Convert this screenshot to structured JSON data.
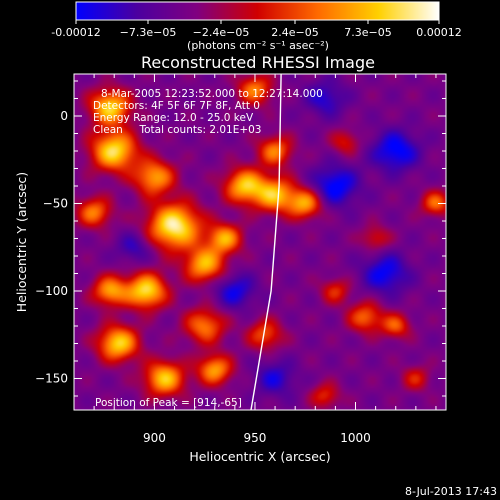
{
  "chart_data": {
    "type": "heatmap",
    "title": "Reconstructed RHESSI Image",
    "colorbar": {
      "tick_labels": [
        "-0.00012",
        "−7.3e−05",
        "−2.4e−05",
        "2.4e−05",
        "7.3e−05",
        "0.00012"
      ],
      "range": [
        -0.00012,
        0.00012
      ],
      "unit_label": "(photons cm⁻² s⁻¹ asec⁻²)",
      "colors": [
        "#0000ff",
        "#4b00a0",
        "#800080",
        "#d00000",
        "#ff6a00",
        "#ffd000",
        "#ffffff"
      ]
    },
    "xlabel": "Heliocentric X (arcsec)",
    "ylabel": "Heliocentric Y (arcsec)",
    "xlim": [
      860,
      1045
    ],
    "ylim": [
      -168,
      24
    ],
    "xticks": [
      {
        "value": 900,
        "label": "900"
      },
      {
        "value": 950,
        "label": "950"
      },
      {
        "value": 1000,
        "label": "1000"
      }
    ],
    "yticks": [
      {
        "value": 0,
        "label": "0"
      },
      {
        "value": -50,
        "label": "−50"
      },
      {
        "value": -100,
        "label": "−100"
      },
      {
        "value": -150,
        "label": "−150"
      }
    ],
    "annotations": {
      "time_range": "8-Mar-2005 12:23:52.000 to 12:27:14.000",
      "detectors": "Detectors: 4F 5F 6F 7F 8F, Att 0",
      "energy": "Energy Range: 12.0 - 25.0 keV",
      "clean": "Clean     Total counts: 2.01E+03",
      "peak": "Position of Peak = [914,-65]"
    },
    "blobs": [
      {
        "x": 910,
        "y": -63,
        "amp": 1.0,
        "s": 9
      },
      {
        "x": 896,
        "y": -100,
        "amp": 0.9,
        "s": 7
      },
      {
        "x": 878,
        "y": -100,
        "amp": 0.7,
        "s": 6
      },
      {
        "x": 882,
        "y": -130,
        "amp": 0.85,
        "s": 7
      },
      {
        "x": 905,
        "y": -150,
        "amp": 0.8,
        "s": 7
      },
      {
        "x": 930,
        "y": -145,
        "amp": 0.7,
        "s": 6
      },
      {
        "x": 880,
        "y": -20,
        "amp": 0.9,
        "s": 8
      },
      {
        "x": 878,
        "y": 5,
        "amp": 0.85,
        "s": 7
      },
      {
        "x": 900,
        "y": -35,
        "amp": 0.7,
        "s": 7
      },
      {
        "x": 925,
        "y": -85,
        "amp": 0.75,
        "s": 7
      },
      {
        "x": 935,
        "y": -70,
        "amp": 0.7,
        "s": 6
      },
      {
        "x": 945,
        "y": -40,
        "amp": 0.8,
        "s": 7
      },
      {
        "x": 960,
        "y": -45,
        "amp": 0.75,
        "s": 7
      },
      {
        "x": 975,
        "y": -50,
        "amp": 0.7,
        "s": 6
      },
      {
        "x": 960,
        "y": -20,
        "amp": 0.6,
        "s": 6
      },
      {
        "x": 950,
        "y": 15,
        "amp": 0.6,
        "s": 6
      },
      {
        "x": 870,
        "y": -55,
        "amp": 0.6,
        "s": 6
      },
      {
        "x": 925,
        "y": -120,
        "amp": 0.6,
        "s": 7
      },
      {
        "x": 955,
        "y": -125,
        "amp": 0.5,
        "s": 6
      },
      {
        "x": 1005,
        "y": -115,
        "amp": 0.55,
        "s": 6
      },
      {
        "x": 1020,
        "y": -120,
        "amp": 0.5,
        "s": 5
      },
      {
        "x": 1040,
        "y": -50,
        "amp": 0.55,
        "s": 5
      },
      {
        "x": 995,
        "y": -15,
        "amp": 0.35,
        "s": 5
      },
      {
        "x": 1010,
        "y": -70,
        "amp": 0.35,
        "s": 5
      },
      {
        "x": 990,
        "y": -100,
        "amp": 0.4,
        "s": 5
      },
      {
        "x": 1030,
        "y": -150,
        "amp": 0.35,
        "s": 5
      },
      {
        "x": 985,
        "y": -160,
        "amp": 0.4,
        "s": 5
      },
      {
        "x": 940,
        "y": -100,
        "amp": -0.4,
        "s": 7
      },
      {
        "x": 990,
        "y": -40,
        "amp": -0.5,
        "s": 8
      },
      {
        "x": 1020,
        "y": -20,
        "amp": -0.5,
        "s": 8
      },
      {
        "x": 1015,
        "y": -90,
        "amp": -0.45,
        "s": 8
      },
      {
        "x": 960,
        "y": -150,
        "amp": -0.35,
        "s": 7
      },
      {
        "x": 890,
        "y": -75,
        "amp": -0.3,
        "s": 6
      },
      {
        "x": 985,
        "y": 10,
        "amp": -0.35,
        "s": 7
      }
    ],
    "limb_x_at_y": [
      {
        "y": 24,
        "x": 963
      },
      {
        "y": -40,
        "x": 962
      },
      {
        "y": -100,
        "x": 958
      },
      {
        "y": -168,
        "x": 948
      }
    ]
  },
  "footer": {
    "date": "8-Jul-2013 17:43"
  }
}
